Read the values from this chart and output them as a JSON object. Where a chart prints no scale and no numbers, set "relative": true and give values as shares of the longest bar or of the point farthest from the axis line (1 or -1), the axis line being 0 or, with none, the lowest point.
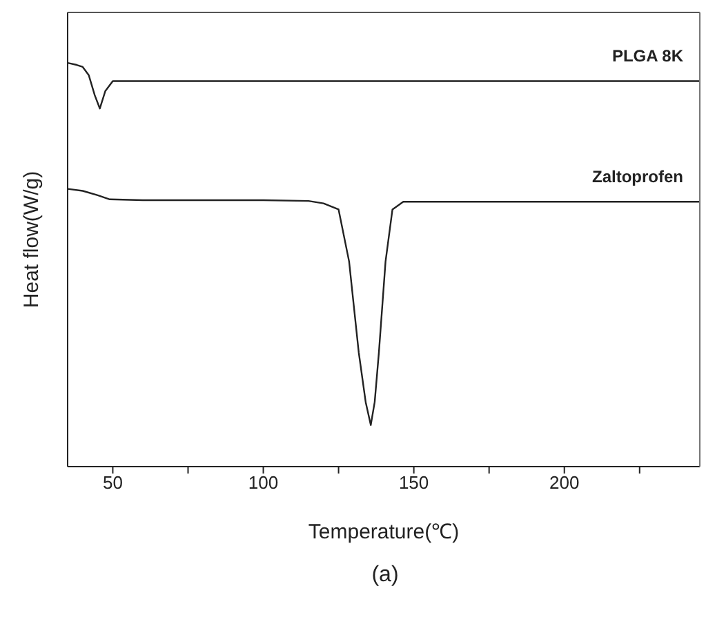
{
  "chart_data": {
    "type": "line",
    "xlabel": "Temperature(℃)",
    "ylabel": "Heat flow(W/g)",
    "relative": true,
    "xlim": [
      35,
      245
    ],
    "xticks": [
      50,
      100,
      150,
      200,
      {
        "value": 75,
        "label": null
      },
      {
        "value": 125,
        "label": null
      },
      {
        "value": 175,
        "label": null
      },
      {
        "value": 225,
        "label": null
      }
    ],
    "tick_labels": "x",
    "marker": "none",
    "line_style": "solid",
    "annotations": [
      "(a)"
    ],
    "series": [
      {
        "name": "PLGA 8K",
        "color": "#222222",
        "x": [
          35,
          38,
          40,
          42,
          44,
          45.7,
          47.5,
          50,
          55,
          100,
          150,
          200,
          245
        ],
        "values": [
          1,
          0.995,
          0.99,
          0.97,
          0.92,
          0.887,
          0.93,
          0.955,
          0.955,
          0.955,
          0.955,
          0.955,
          0.955
        ]
      },
      {
        "name": "Zaltoprofen",
        "color": "#222222",
        "x": [
          35,
          40,
          45,
          49,
          60,
          100,
          115,
          120,
          125,
          128.5,
          131.7,
          134,
          135.7,
          137,
          138.4,
          140.6,
          142.9,
          146.5,
          150,
          200,
          245
        ],
        "values": [
          0.688,
          0.683,
          0.672,
          0.662,
          0.66,
          0.66,
          0.658,
          0.652,
          0.637,
          0.508,
          0.283,
          0.16,
          0.103,
          0.16,
          0.283,
          0.508,
          0.637,
          0.656,
          0.656,
          0.656,
          0.656
        ]
      }
    ]
  }
}
